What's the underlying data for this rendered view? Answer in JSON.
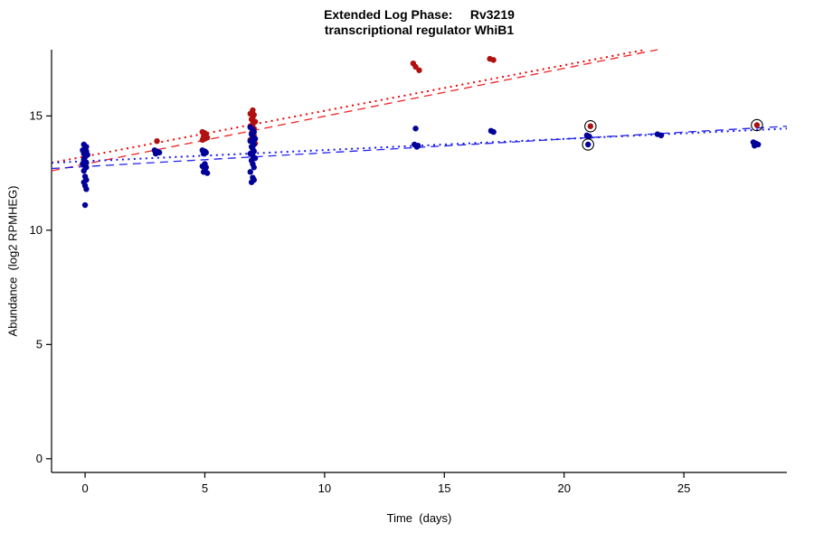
{
  "chart_data": {
    "type": "scatter",
    "title": "Extended Log Phase:     Rv3219",
    "subtitle": "transcriptional regulator WhiB1",
    "xlabel": "Time  (days)",
    "ylabel": "Abundance  (log2 RPMHEG)",
    "xlim": [
      -1.4,
      29.3
    ],
    "ylim": [
      -0.6,
      17.9
    ],
    "xticks": [
      0,
      5,
      10,
      15,
      20,
      25
    ],
    "yticks": [
      0,
      5,
      10,
      15
    ],
    "grid": false,
    "legend": "none",
    "series": [
      {
        "name": "red-group",
        "color": "#b01010",
        "points": [
          [
            3.0,
            13.9
          ],
          [
            4.9,
            14.3
          ],
          [
            5.0,
            14.25
          ],
          [
            5.05,
            14.2
          ],
          [
            4.95,
            14.1
          ],
          [
            5.1,
            14.05
          ],
          [
            5.0,
            14.0
          ],
          [
            4.9,
            13.95
          ],
          [
            7.0,
            15.25
          ],
          [
            6.9,
            15.1
          ],
          [
            7.05,
            15.05
          ],
          [
            7.0,
            14.95
          ],
          [
            6.95,
            14.85
          ],
          [
            7.1,
            14.75
          ],
          [
            7.0,
            14.65
          ],
          [
            6.9,
            14.55
          ],
          [
            7.05,
            14.45
          ],
          [
            7.0,
            14.35
          ],
          [
            6.95,
            14.25
          ],
          [
            7.05,
            14.15
          ],
          [
            7.0,
            14.05
          ],
          [
            6.9,
            13.95
          ],
          [
            7.0,
            13.85
          ],
          [
            7.1,
            13.8
          ],
          [
            13.7,
            17.3
          ],
          [
            13.8,
            17.15
          ],
          [
            13.95,
            17.0
          ],
          [
            16.9,
            17.5
          ],
          [
            17.05,
            17.45
          ],
          [
            21.1,
            14.55
          ],
          [
            28.05,
            14.6
          ]
        ],
        "circled_points": [
          [
            21.1,
            14.55
          ],
          [
            28.05,
            14.6
          ]
        ]
      },
      {
        "name": "blue-group",
        "color": "#000099",
        "points": [
          [
            -0.05,
            13.75
          ],
          [
            0.05,
            13.65
          ],
          [
            0.0,
            13.6
          ],
          [
            -0.1,
            13.5
          ],
          [
            0.05,
            13.45
          ],
          [
            0.0,
            13.4
          ],
          [
            -0.05,
            13.35
          ],
          [
            0.1,
            13.3
          ],
          [
            0.0,
            13.2
          ],
          [
            -0.05,
            13.1
          ],
          [
            0.0,
            13.0
          ],
          [
            0.05,
            12.95
          ],
          [
            -0.1,
            12.9
          ],
          [
            0.0,
            12.8
          ],
          [
            0.05,
            12.75
          ],
          [
            -0.05,
            12.6
          ],
          [
            0.0,
            12.35
          ],
          [
            0.05,
            12.2
          ],
          [
            -0.05,
            12.1
          ],
          [
            0.0,
            11.95
          ],
          [
            0.05,
            11.8
          ],
          [
            0.0,
            11.1
          ],
          [
            2.9,
            13.5
          ],
          [
            3.0,
            13.45
          ],
          [
            3.1,
            13.4
          ],
          [
            2.95,
            13.35
          ],
          [
            4.9,
            13.5
          ],
          [
            5.0,
            13.45
          ],
          [
            5.05,
            13.4
          ],
          [
            4.95,
            13.35
          ],
          [
            5.0,
            12.9
          ],
          [
            4.9,
            12.8
          ],
          [
            5.05,
            12.75
          ],
          [
            5.0,
            12.65
          ],
          [
            4.95,
            12.55
          ],
          [
            5.1,
            12.5
          ],
          [
            6.9,
            14.5
          ],
          [
            7.0,
            14.4
          ],
          [
            7.05,
            14.3
          ],
          [
            6.95,
            14.2
          ],
          [
            7.0,
            14.1
          ],
          [
            7.1,
            14.0
          ],
          [
            6.9,
            13.9
          ],
          [
            7.0,
            13.85
          ],
          [
            7.05,
            13.75
          ],
          [
            6.95,
            13.65
          ],
          [
            7.0,
            13.55
          ],
          [
            7.05,
            13.45
          ],
          [
            6.9,
            13.35
          ],
          [
            7.0,
            13.25
          ],
          [
            7.1,
            13.15
          ],
          [
            6.95,
            13.05
          ],
          [
            7.0,
            12.9
          ],
          [
            7.05,
            12.75
          ],
          [
            6.9,
            12.55
          ],
          [
            7.0,
            12.3
          ],
          [
            7.05,
            12.2
          ],
          [
            6.95,
            12.1
          ],
          [
            13.8,
            14.45
          ],
          [
            13.75,
            13.75
          ],
          [
            13.9,
            13.7
          ],
          [
            13.85,
            13.65
          ],
          [
            16.95,
            14.35
          ],
          [
            17.05,
            14.3
          ],
          [
            20.95,
            14.15
          ],
          [
            21.05,
            14.1
          ],
          [
            21.0,
            13.75
          ],
          [
            23.9,
            14.2
          ],
          [
            24.05,
            14.15
          ],
          [
            27.9,
            13.85
          ],
          [
            28.0,
            13.8
          ],
          [
            28.1,
            13.75
          ],
          [
            27.95,
            13.7
          ]
        ],
        "circled_points": [
          [
            21.0,
            13.75
          ]
        ]
      }
    ],
    "trend_lines": [
      {
        "name": "red-dotted-fit",
        "color": "#ee0000",
        "style": "dotted",
        "width": 2,
        "from": [
          -1.4,
          12.95
        ],
        "to": [
          23.4,
          17.9
        ]
      },
      {
        "name": "red-dashed-fit",
        "color": "#ee2222",
        "style": "dashed",
        "width": 1.3,
        "from": [
          -1.4,
          12.6
        ],
        "to": [
          23.9,
          17.9
        ]
      },
      {
        "name": "blue-dotted-fit",
        "color": "#1a1aee",
        "style": "dotted",
        "width": 2,
        "from": [
          -1.4,
          12.95
        ],
        "to": [
          29.3,
          14.45
        ]
      },
      {
        "name": "blue-dashed-fit",
        "color": "#2222ee",
        "style": "dashed",
        "width": 1.3,
        "from": [
          -1.4,
          12.7
        ],
        "to": [
          29.3,
          14.55
        ]
      }
    ],
    "marker": {
      "radius": 3.2,
      "outlier_ring_color": "#000000",
      "outlier_ring_radius": 6.2
    }
  }
}
